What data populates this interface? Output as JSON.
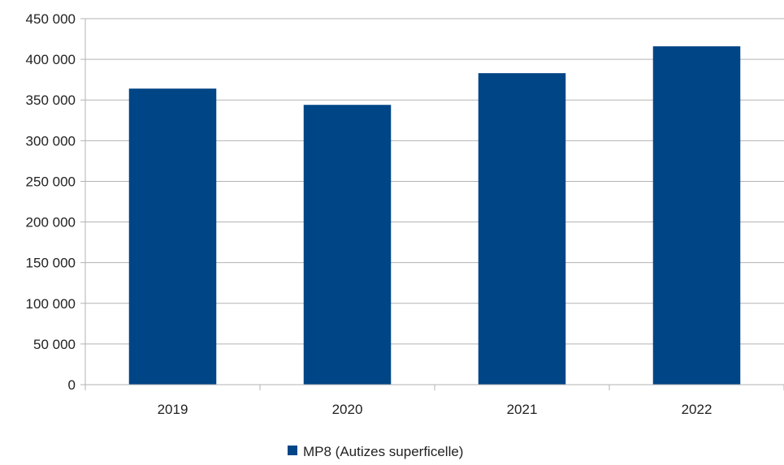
{
  "chart_data": {
    "type": "bar",
    "categories": [
      "2019",
      "2020",
      "2021",
      "2022"
    ],
    "series": [
      {
        "name": "MP8 (Autizes superficelle)",
        "values": [
          364000,
          344000,
          383000,
          416000
        ],
        "color": "#004586"
      }
    ],
    "ylim": [
      0,
      450000
    ],
    "y_ticks": [
      0,
      50000,
      100000,
      150000,
      200000,
      250000,
      300000,
      350000,
      400000,
      450000
    ],
    "y_tick_labels": [
      "0",
      "50 000",
      "100 000",
      "150 000",
      "200 000",
      "250 000",
      "300 000",
      "350 000",
      "400 000",
      "450 000"
    ],
    "grid": true,
    "legend": "bottom"
  }
}
